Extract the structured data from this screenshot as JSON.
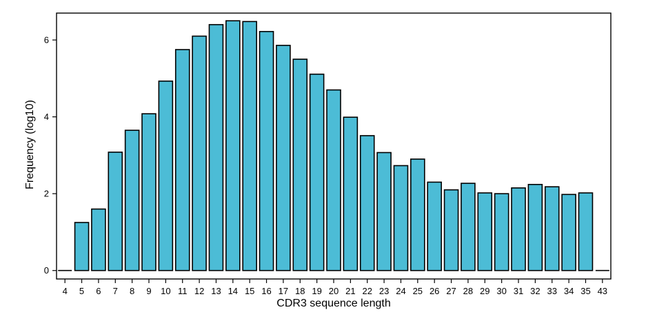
{
  "chart_data": {
    "type": "bar",
    "title": "",
    "xlabel": "CDR3 sequence length",
    "ylabel": "Frequency (log10)",
    "categories": [
      "4",
      "5",
      "6",
      "7",
      "8",
      "9",
      "10",
      "11",
      "12",
      "13",
      "14",
      "15",
      "16",
      "17",
      "18",
      "19",
      "20",
      "21",
      "22",
      "23",
      "24",
      "25",
      "26",
      "27",
      "28",
      "29",
      "30",
      "31",
      "32",
      "33",
      "34",
      "35",
      "43"
    ],
    "values": [
      0,
      1.25,
      1.6,
      3.08,
      3.65,
      4.08,
      4.93,
      5.75,
      6.1,
      6.4,
      6.5,
      6.48,
      6.22,
      5.86,
      5.5,
      5.11,
      4.7,
      3.99,
      3.51,
      3.07,
      2.73,
      2.9,
      2.3,
      2.1,
      2.27,
      2.02,
      2.0,
      2.15,
      2.24,
      2.18,
      1.98,
      2.02,
      0
    ],
    "yticks": [
      0,
      2,
      4,
      6
    ],
    "ylim": [
      -0.22,
      6.7
    ],
    "grid": false,
    "bar_color": "#4cbcd6",
    "bar_edge_color": "#000000"
  }
}
